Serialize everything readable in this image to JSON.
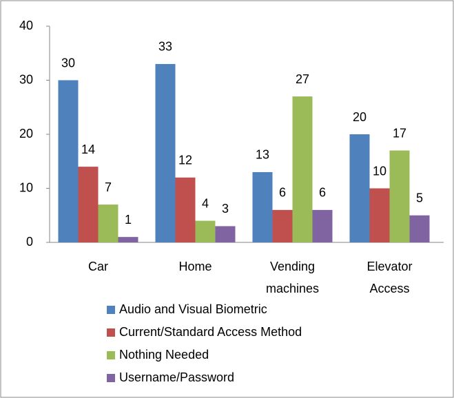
{
  "chart_data": {
    "type": "bar",
    "categories": [
      "Car",
      "Home",
      "Vending machines",
      "Elevator Access"
    ],
    "series": [
      {
        "name": "Audio and Visual Biometric",
        "color": "#4f81bd",
        "values": [
          30,
          33,
          13,
          20
        ]
      },
      {
        "name": "Current/Standard Access Method",
        "color": "#c0504d",
        "values": [
          14,
          12,
          6,
          10
        ]
      },
      {
        "name": "Nothing Needed",
        "color": "#9bbb59",
        "values": [
          7,
          4,
          27,
          17
        ]
      },
      {
        "name": "Username/Password",
        "color": "#8064a2",
        "values": [
          1,
          3,
          6,
          5
        ]
      }
    ],
    "ylim": [
      0,
      40
    ],
    "yticks": [
      0,
      10,
      20,
      30,
      40
    ],
    "grid": false,
    "legend": "bottom"
  }
}
